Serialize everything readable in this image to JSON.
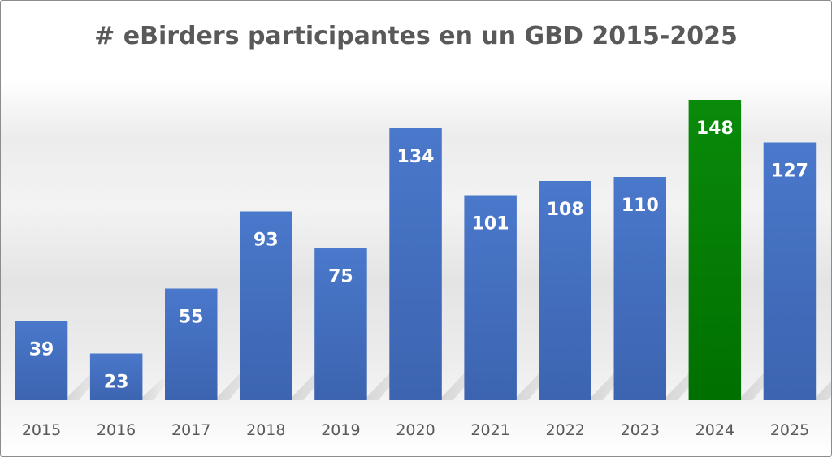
{
  "chart_data": {
    "type": "bar",
    "title": "# eBirders participantes en un GBD 2015-2025",
    "categories": [
      "2015",
      "2016",
      "2017",
      "2018",
      "2019",
      "2020",
      "2021",
      "2022",
      "2023",
      "2024",
      "2025"
    ],
    "values": [
      39,
      23,
      55,
      93,
      75,
      134,
      101,
      108,
      110,
      148,
      127
    ],
    "highlight_category": "2024",
    "colors": {
      "bar": "#4472c4",
      "highlight": "#008000",
      "label": "#ffffff",
      "tick": "#595959",
      "title": "#595959"
    },
    "xlabel": "",
    "ylabel": "",
    "ylim": [
      0,
      160
    ],
    "grid": false,
    "legend": "none",
    "data_labels": "inside-top"
  }
}
